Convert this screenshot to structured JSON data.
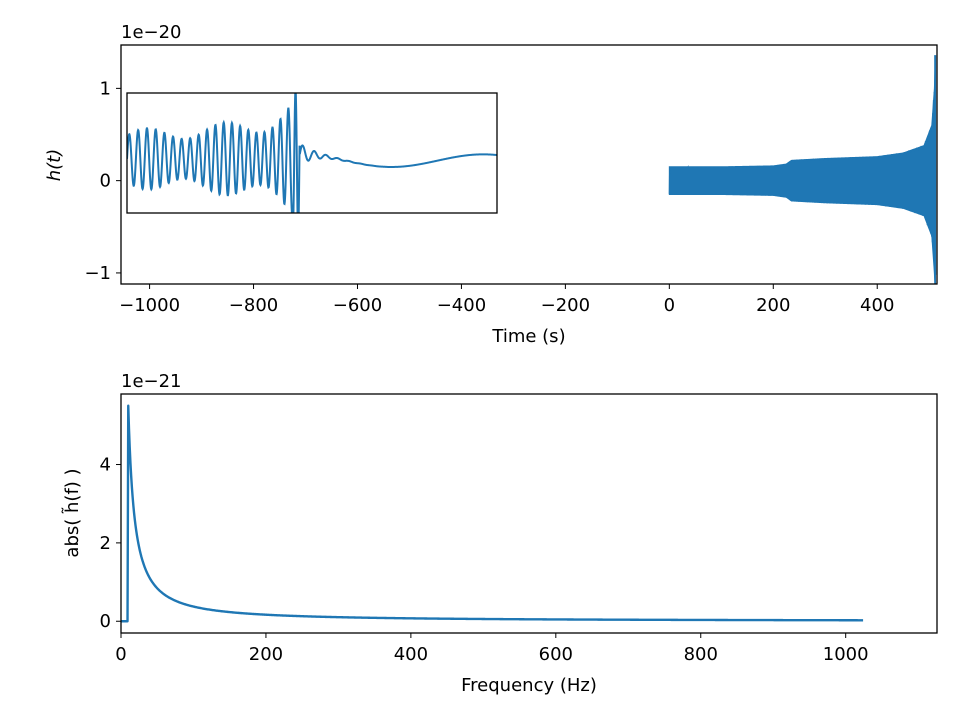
{
  "colors": {
    "series": "#1f77b4",
    "axes": "#000000",
    "background": "#ffffff"
  },
  "chart_data": [
    {
      "type": "line",
      "title": "",
      "xlabel": "Time (s)",
      "ylabel": "h(t)",
      "offset_text": "1e−20",
      "xlim": [
        -1055,
        515
      ],
      "ylim": [
        -1.12,
        1.47
      ],
      "xticks": [
        -1000,
        -800,
        -600,
        -400,
        -200,
        0,
        200,
        400
      ],
      "xtick_labels": [
        "−1000",
        "−800",
        "−600",
        "−400",
        "−200",
        "0",
        "200",
        "400"
      ],
      "yticks": [
        -1,
        0,
        1
      ],
      "ytick_labels": [
        "−1",
        "0",
        "1"
      ],
      "grid": false,
      "series": [
        {
          "x_range": [
            0,
            512
          ],
          "envelope_x": [
            0,
            100,
            200,
            225,
            235,
            300,
            400,
            450,
            490,
            505,
            510,
            512
          ],
          "envelope_amp": [
            0.15,
            0.15,
            0.16,
            0.18,
            0.22,
            0.24,
            0.26,
            0.3,
            0.38,
            0.6,
            1.0,
            1.35
          ]
        }
      ],
      "inset": {
        "x_fraction": [
          0.0,
          0.455
        ],
        "y_range": [
          -0.38,
          0.95
        ]
      }
    },
    {
      "type": "line",
      "title": "",
      "xlabel": "Frequency (Hz)",
      "ylabel": "abs( h̃(f) )",
      "offset_text": "1e−21",
      "xlim": [
        0,
        1126
      ],
      "ylim": [
        -0.3,
        5.8
      ],
      "xticks": [
        0,
        200,
        400,
        600,
        800,
        1000
      ],
      "xtick_labels": [
        "0",
        "200",
        "400",
        "600",
        "800",
        "1000"
      ],
      "yticks": [
        0,
        2,
        4
      ],
      "ytick_labels": [
        "0",
        "2",
        "4"
      ],
      "grid": false,
      "series": [
        {
          "f_low": 10,
          "f_high": 1024,
          "peak": 5.5,
          "points": [
            [
              0,
              0
            ],
            [
              9,
              0
            ],
            [
              10,
              5.5
            ],
            [
              15,
              3.84
            ],
            [
              20,
              2.9
            ],
            [
              30,
              1.97
            ],
            [
              50,
              1.18
            ],
            [
              100,
              0.6
            ],
            [
              200,
              0.3
            ],
            [
              400,
              0.15
            ],
            [
              600,
              0.1
            ],
            [
              800,
              0.075
            ],
            [
              1024,
              0.06
            ]
          ]
        }
      ]
    }
  ]
}
